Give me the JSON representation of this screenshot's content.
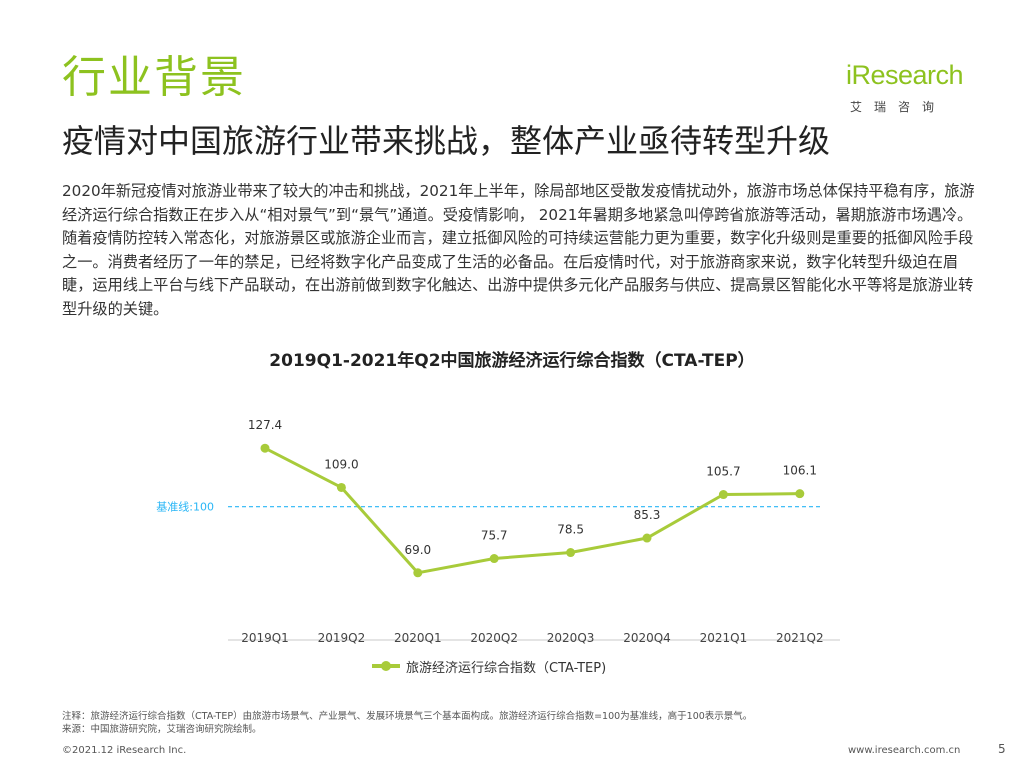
{
  "header": {
    "title": "行业背景",
    "subtitle": "疫情对中国旅游行业带来挑战，整体产业亟待转型升级"
  },
  "logo": {
    "wordmark": "iResearch",
    "subtitle": "艾瑞咨询"
  },
  "body_text": "2020年新冠疫情对旅游业带来了较大的冲击和挑战，2021年上半年，除局部地区受散发疫情扰动外，旅游市场总体保持平稳有序，旅游经济运行综合指数正在步入从“相对景气”到“景气”通道。受疫情影响， 2021年暑期多地紧急叫停跨省旅游等活动，暑期旅游市场遇冷。随着疫情防控转入常态化，对旅游景区或旅游企业而言，建立抵御风险的可持续运营能力更为重要，数字化升级则是重要的抵御风险手段之一。消费者经历了一年的禁足，已经将数字化产品变成了生活的必备品。在后疫情时代，对于旅游商家来说，数字化转型升级迫在眉睫，运用线上平台与线下产品联动，在出游前做到数字化触达、出游中提供多元化产品服务与供应、提高景区智能化水平等将是旅游业转型升级的关键。",
  "chart_data": {
    "type": "line",
    "title": "2019Q1-2021年Q2中国旅游经济运行综合指数（CTA-TEP）",
    "categories": [
      "2019Q1",
      "2019Q2",
      "2020Q1",
      "2020Q2",
      "2020Q3",
      "2020Q4",
      "2021Q1",
      "2021Q2"
    ],
    "series": [
      {
        "name": "旅游经济运行综合指数（CTA-TEP)",
        "values": [
          127.4,
          109.0,
          69.0,
          75.7,
          78.5,
          85.3,
          105.7,
          106.1
        ],
        "labels": [
          "127.4",
          "109.0",
          "69.0",
          "75.7",
          "78.5",
          "85.3",
          "105.7",
          "106.1"
        ],
        "color": "#a8cb3a"
      }
    ],
    "reference_line": {
      "value": 100,
      "label": "基准线:100",
      "color": "#29b6f6"
    },
    "ylim": [
      60,
      135
    ],
    "xlabel": "",
    "ylabel": "",
    "grid": false,
    "legend": "bottom"
  },
  "footnote": {
    "note": "注释：旅游经济运行综合指数（CTA-TEP）由旅游市场景气、产业景气、发展环境景气三个基本面构成。旅游经济运行综合指数=100为基准线，高于100表示景气。",
    "source": "来源：中国旅游研究院，艾瑞咨询研究院绘制。"
  },
  "footer": {
    "copyright": "©2021.12 iResearch Inc.",
    "website": "www.iresearch.com.cn",
    "page_number": "5"
  },
  "colors": {
    "accent": "#8dc21f",
    "series": "#a8cb3a",
    "reference": "#29b6f6"
  }
}
